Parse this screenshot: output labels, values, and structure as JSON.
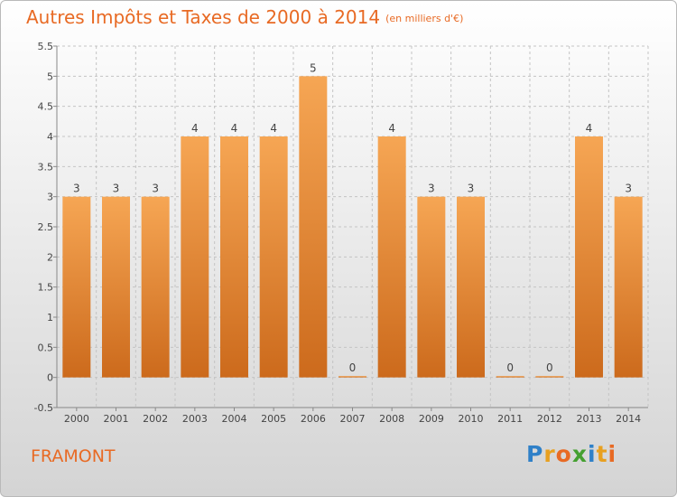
{
  "header": {
    "title": "Autres Impôts et Taxes de 2000 à 2014",
    "subtitle": "(en milliers d'€)"
  },
  "town": "FRAMONT",
  "logo": {
    "text": "Proxiti",
    "letters": [
      "P",
      "r",
      "o",
      "x",
      "i",
      "t",
      "i"
    ],
    "colors": [
      "#2f80c8",
      "#e8a020",
      "#e86a24",
      "#44a030",
      "#2f80c8",
      "#e8a020",
      "#e86a24"
    ]
  },
  "chart_data": {
    "type": "bar",
    "title": "Autres Impôts et Taxes de 2000 à 2014",
    "subtitle": "(en milliers d'€)",
    "categories": [
      "2000",
      "2001",
      "2002",
      "2003",
      "2004",
      "2005",
      "2006",
      "2007",
      "2008",
      "2009",
      "2010",
      "2011",
      "2012",
      "2013",
      "2014"
    ],
    "values": [
      3,
      3,
      3,
      4,
      4,
      4,
      5,
      0,
      4,
      3,
      3,
      0,
      0,
      4,
      3
    ],
    "data_labels": [
      "3",
      "3",
      "3",
      "4",
      "4",
      "4",
      "5",
      "0",
      "4",
      "3",
      "3",
      "0",
      "0",
      "4",
      "3"
    ],
    "ylim": [
      -0.5,
      5.5
    ],
    "yticks": [
      "-0.5",
      "0",
      "0.5",
      "1",
      "1.5",
      "2",
      "2.5",
      "3",
      "3.5",
      "4",
      "4.5",
      "5",
      "5.5"
    ],
    "grid": true,
    "bar_color": "#f08c2e"
  }
}
